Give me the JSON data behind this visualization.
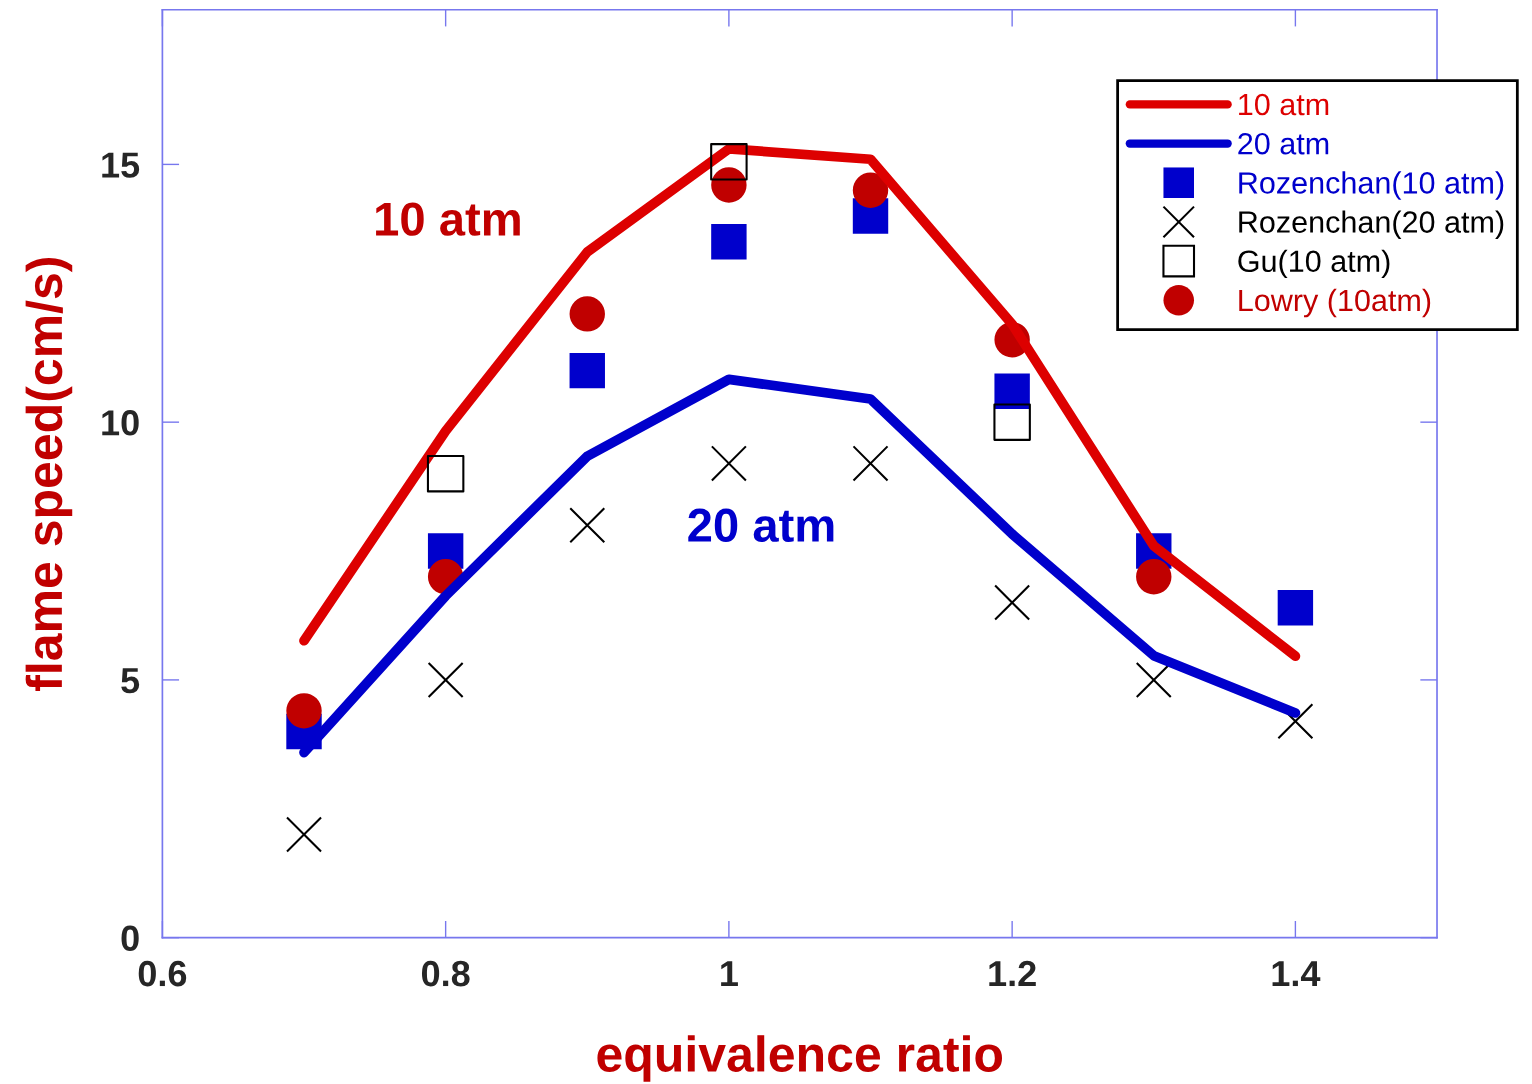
{
  "chart_data": {
    "type": "scatter",
    "xlabel": "equivalence ratio",
    "ylabel": "flame speed(cm/s)",
    "x": [
      0.7,
      0.8,
      0.9,
      1.0,
      1.1,
      1.2,
      1.3,
      1.4
    ],
    "series": [
      {
        "name": "10 atm",
        "type": "line",
        "color": "#dd0000",
        "line_style": "solid",
        "marker": "none",
        "values": [
          5.76,
          9.83,
          13.3,
          15.3,
          15.1,
          11.9,
          7.6,
          5.46
        ]
      },
      {
        "name": "20 atm",
        "type": "line",
        "color": "#0000cc",
        "line_style": "solid",
        "marker": "none",
        "values": [
          3.59,
          6.63,
          9.34,
          10.83,
          10.45,
          7.83,
          5.47,
          4.36
        ]
      },
      {
        "name": "Rozenchan(10 atm)",
        "color": "#0000cc",
        "marker": "square",
        "values": [
          4.0,
          7.5,
          11.0,
          13.5,
          14.0,
          10.6,
          7.5,
          6.4
        ]
      },
      {
        "name": "Rozenchan(20 atm)",
        "color": "#000000",
        "marker": "cross",
        "values": [
          2.0,
          5.0,
          8.0,
          9.2,
          9.2,
          6.5,
          5.0,
          4.2
        ]
      },
      {
        "name": "Gu(10 atm)",
        "color": "#000000",
        "marker": "square",
        "x": [
          0.8,
          1.0,
          1.2
        ],
        "values": [
          9.0,
          15.05,
          10.0
        ]
      },
      {
        "name": "Lowry (10atm)",
        "color": "#c00000",
        "marker": "circle",
        "x": [
          0.7,
          0.8,
          0.9,
          1.0,
          1.1,
          1.2,
          1.3
        ],
        "values": [
          4.4,
          7.0,
          12.1,
          14.6,
          14.5,
          11.6,
          7.0
        ]
      }
    ],
    "annotations": [
      "10 atm",
      "20 atm"
    ],
    "xlim": [
      0.6,
      1.5
    ],
    "xticks": [
      0.6,
      0.8,
      1,
      1.2,
      1.4
    ],
    "ylim": [
      0,
      18
    ],
    "yticks": [
      0,
      5,
      10,
      15
    ],
    "grid": false,
    "legend": "top right"
  }
}
